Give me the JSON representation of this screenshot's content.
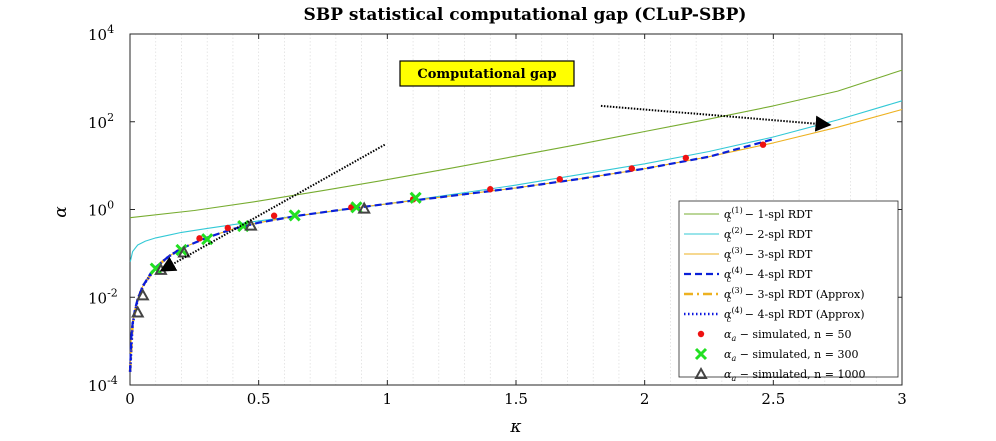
{
  "chart_data": {
    "type": "line",
    "title": "SBP statistical computational gap (CLuP-SBP)",
    "xlabel": "κ",
    "ylabel": "α",
    "xlim": [
      0,
      3
    ],
    "ylim_log10": [
      -4,
      4
    ],
    "x_ticks": [
      "0",
      "0.5",
      "1",
      "1.5",
      "2",
      "2.5",
      "3"
    ],
    "y_ticks": [
      {
        "base": "10",
        "exp": "-4"
      },
      {
        "base": "10",
        "exp": "-2"
      },
      {
        "base": "10",
        "exp": "0"
      },
      {
        "base": "10",
        "exp": "2"
      },
      {
        "base": "10",
        "exp": "4"
      }
    ],
    "grid": "minor-x",
    "legend_position": "bottom-right",
    "series": [
      {
        "key": "rdt1",
        "legend": "α_c^(1) − 1-spl RDT",
        "color": "#77ac30",
        "style": "solid",
        "x": [
          0,
          0.25,
          0.5,
          0.75,
          1.0,
          1.25,
          1.5,
          1.75,
          2.0,
          2.25,
          2.5,
          2.75,
          3.0
        ],
        "y": [
          0.65,
          0.95,
          1.55,
          2.7,
          4.8,
          8.8,
          16.5,
          31,
          60,
          115,
          230,
          500,
          1500
        ]
      },
      {
        "key": "rdt2",
        "legend": "α_c^(2) − 2-spl RDT",
        "color": "#33c9d6",
        "style": "solid",
        "x": [
          0.001,
          0.01,
          0.03,
          0.06,
          0.1,
          0.15,
          0.2,
          0.3,
          0.4,
          0.5,
          0.75,
          1.0,
          1.25,
          1.5,
          1.75,
          2.0,
          2.25,
          2.5,
          2.75,
          3.0
        ],
        "y": [
          0.065,
          0.11,
          0.155,
          0.19,
          0.225,
          0.26,
          0.3,
          0.37,
          0.45,
          0.55,
          0.85,
          1.35,
          2.2,
          3.6,
          6.3,
          11,
          21,
          45,
          110,
          300
        ]
      },
      {
        "key": "rdt3",
        "legend": "α_c^(3) − 3-spl RDT",
        "color": "#edb120",
        "style": "solid",
        "x": [
          0.0005,
          0.005,
          0.01,
          0.02,
          0.03,
          0.05,
          0.08,
          0.1,
          0.15,
          0.2,
          0.3,
          0.4,
          0.5,
          0.65,
          0.8,
          1.0,
          1.25,
          1.5,
          1.75,
          2.0,
          2.25,
          2.5,
          2.75,
          3.0
        ],
        "y": [
          0.0002,
          0.0012,
          0.0025,
          0.0055,
          0.009,
          0.018,
          0.035,
          0.048,
          0.085,
          0.13,
          0.23,
          0.36,
          0.5,
          0.72,
          0.95,
          1.35,
          2.05,
          3.1,
          5.0,
          8.5,
          16,
          33,
          75,
          190
        ]
      },
      {
        "key": "rdt4",
        "legend": "α_c^(4) − 4-spl RDT",
        "color": "#0a20d8",
        "style": "dashed",
        "x": [
          0.0005,
          0.005,
          0.01,
          0.02,
          0.03,
          0.05,
          0.08,
          0.1,
          0.15,
          0.2,
          0.3,
          0.4,
          0.5,
          0.65,
          0.8,
          1.0,
          1.25,
          1.5,
          1.75,
          2.0,
          2.25,
          2.5
        ],
        "y": [
          0.0002,
          0.0012,
          0.0025,
          0.0055,
          0.009,
          0.018,
          0.035,
          0.048,
          0.085,
          0.13,
          0.23,
          0.36,
          0.5,
          0.72,
          0.95,
          1.35,
          2.05,
          3.1,
          5.0,
          8.5,
          16,
          40
        ]
      },
      {
        "key": "approx3",
        "legend": "α_c^(3) − 3-spl RDT (Approx)",
        "color": "#edb120",
        "style": "dashdot",
        "x": [
          0.0005,
          0.01,
          0.03,
          0.05,
          0.1,
          0.15,
          0.2
        ],
        "y": [
          0.0002,
          0.0025,
          0.009,
          0.018,
          0.048,
          0.085,
          0.13
        ]
      },
      {
        "key": "approx4",
        "legend": "α_c^(4) − 4-spl RDT (Approx)",
        "color": "#0a14e0",
        "style": "dotted",
        "x": [
          0.0005,
          0.01,
          0.03,
          0.05,
          0.1,
          0.15,
          0.2
        ],
        "y": [
          0.0002,
          0.0025,
          0.009,
          0.018,
          0.048,
          0.085,
          0.13
        ]
      }
    ],
    "scatter": [
      {
        "key": "sim50",
        "legend": "α_a − simulated, n = 50",
        "color": "#ee1111",
        "marker": "dot",
        "x": [
          0.27,
          0.38,
          0.56,
          0.86,
          1.1,
          1.4,
          1.67,
          1.95,
          2.16,
          2.46
        ],
        "y": [
          0.22,
          0.38,
          0.72,
          1.12,
          1.7,
          2.9,
          4.9,
          8.6,
          15,
          30
        ]
      },
      {
        "key": "sim300",
        "legend": "α_a − simulated, n = 300",
        "color": "#22e022",
        "marker": "x",
        "x": [
          0.1,
          0.2,
          0.3,
          0.44,
          0.64,
          0.88,
          1.11
        ],
        "y": [
          0.045,
          0.12,
          0.21,
          0.42,
          0.73,
          1.12,
          1.85
        ]
      },
      {
        "key": "sim1000",
        "legend": "α_a − simulated, n = 1000",
        "color": "#444444",
        "marker": "triangle",
        "x": [
          0.03,
          0.05,
          0.12,
          0.21,
          0.47,
          0.91
        ],
        "y": [
          0.0045,
          0.011,
          0.042,
          0.105,
          0.43,
          1.05
        ]
      }
    ],
    "annotation": {
      "label": "Computational gap",
      "arrows": [
        {
          "from_x": 0.99,
          "from_y": 30,
          "to_x": 0.12,
          "to_y": 0.04
        },
        {
          "from_x": 1.83,
          "from_y": 230,
          "to_x": 2.72,
          "to_y": 85
        }
      ]
    }
  }
}
